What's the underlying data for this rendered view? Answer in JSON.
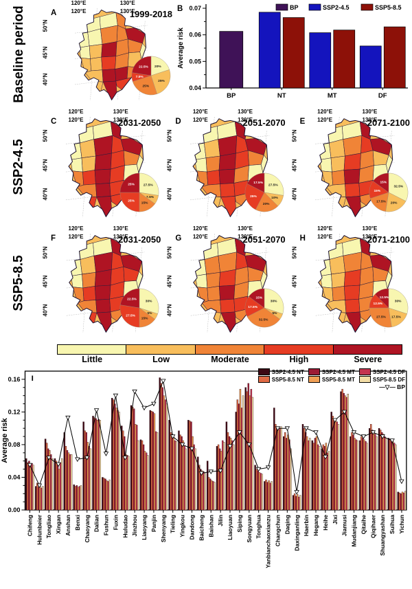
{
  "rows": [
    {
      "label": "Baseline period",
      "panels": [
        "A"
      ],
      "has_bar_chart": true
    },
    {
      "label": "SSP2-4.5",
      "panels": [
        "C",
        "D",
        "E"
      ]
    },
    {
      "label": "SSP5-8.5",
      "panels": [
        "F",
        "G",
        "H"
      ]
    }
  ],
  "risk_palette": {
    "labels": [
      "Little",
      "Low",
      "Moderate",
      "High",
      "Severe"
    ],
    "colors": [
      "#f8f6b0",
      "#f8be5c",
      "#f08437",
      "#e63c23",
      "#af1423"
    ]
  },
  "map_axis": {
    "top": [
      "120°E",
      "130°E"
    ],
    "bottom": [
      "120°E",
      "130°E"
    ],
    "left": [
      "50°N",
      "45°N",
      "40°N"
    ]
  },
  "map_panels": {
    "A": {
      "letter": "A",
      "period": "1999-2018",
      "region_levels": [
        0,
        0,
        2,
        0,
        0,
        2,
        2,
        4,
        0,
        1,
        4,
        2,
        2,
        0,
        1,
        1,
        3,
        2,
        1,
        1,
        4,
        4,
        2,
        1,
        4,
        3
      ]
    },
    "C": {
      "letter": "C",
      "period": "2031-2050",
      "region_levels": [
        0,
        0,
        4,
        0,
        1,
        4,
        3,
        4,
        0,
        1,
        4,
        3,
        2,
        0,
        2,
        3,
        4,
        3,
        0,
        2,
        4,
        3,
        0,
        3,
        4,
        3
      ]
    },
    "D": {
      "letter": "D",
      "period": "2051-2070",
      "region_levels": [
        0,
        0,
        4,
        0,
        1,
        4,
        3,
        4,
        0,
        2,
        4,
        3,
        2,
        0,
        2,
        3,
        4,
        2,
        0,
        2,
        3,
        3,
        0,
        1,
        3,
        2
      ]
    },
    "E": {
      "letter": "E",
      "period": "2071-2100",
      "region_levels": [
        0,
        0,
        4,
        0,
        1,
        2,
        3,
        4,
        0,
        1,
        3,
        2,
        1,
        0,
        1,
        2,
        4,
        2,
        0,
        1,
        3,
        3,
        0,
        1,
        4,
        2
      ]
    },
    "F": {
      "letter": "F",
      "period": "2031-2050",
      "region_levels": [
        0,
        0,
        4,
        0,
        1,
        4,
        3,
        4,
        0,
        2,
        4,
        3,
        3,
        0,
        2,
        3,
        4,
        3,
        0,
        2,
        4,
        3,
        0,
        3,
        4,
        2
      ]
    },
    "G": {
      "letter": "G",
      "period": "2051-2070",
      "region_levels": [
        0,
        0,
        4,
        0,
        2,
        2,
        3,
        4,
        0,
        2,
        3,
        2,
        2,
        0,
        2,
        2,
        4,
        2,
        0,
        2,
        3,
        3,
        0,
        1,
        4,
        2
      ]
    },
    "H": {
      "letter": "H",
      "period": "2071-2100",
      "region_levels": [
        0,
        0,
        4,
        0,
        1,
        2,
        2,
        4,
        0,
        1,
        3,
        2,
        2,
        0,
        1,
        2,
        3,
        2,
        0,
        1,
        3,
        2,
        0,
        1,
        4,
        2
      ]
    }
  },
  "chart_data": [
    {
      "id": "B",
      "type": "bar",
      "letter": "B",
      "ylabel": "Average risk",
      "ylim": [
        0.04,
        0.07
      ],
      "yticks": [
        0.04,
        0.05,
        0.06,
        0.07
      ],
      "categories": [
        "BP",
        "NT",
        "MT",
        "DF"
      ],
      "legend_position": "top-right-inside",
      "grid": false,
      "series": [
        {
          "name": "BP",
          "color": "#3f1257",
          "values": [
            0.0613,
            null,
            null,
            null
          ]
        },
        {
          "name": "SSP2-4.5",
          "color": "#1414bd",
          "values": [
            null,
            0.0685,
            0.0608,
            0.0558
          ]
        },
        {
          "name": "SSP5-8.5",
          "color": "#8d1108",
          "values": [
            null,
            0.0665,
            0.0618,
            0.063
          ]
        }
      ]
    },
    {
      "id": "pies",
      "type": "pie",
      "slice_labels": [
        "Little",
        "Low",
        "Moderate",
        "High",
        "Severe"
      ],
      "panels": [
        {
          "panel": "A",
          "values": [
            20,
            25,
            25,
            7.5,
            22.5
          ]
        },
        {
          "panel": "C",
          "values": [
            27.5,
            7.5,
            15,
            25,
            25
          ]
        },
        {
          "panel": "D",
          "values": [
            27.5,
            10,
            20,
            25,
            17.5
          ]
        },
        {
          "panel": "E",
          "values": [
            32.5,
            20,
            17.5,
            15,
            15
          ]
        },
        {
          "panel": "F",
          "values": [
            30,
            5,
            15,
            27.5,
            22.5
          ]
        },
        {
          "panel": "G",
          "values": [
            30,
            5,
            32.5,
            17.5,
            15
          ]
        },
        {
          "panel": "H",
          "values": [
            30,
            17.5,
            27.5,
            12.5,
            12.5
          ]
        }
      ]
    },
    {
      "id": "I",
      "type": "bar",
      "letter": "I",
      "ylabel": "Average risk",
      "ylim": [
        0,
        0.17
      ],
      "yticks": [
        0,
        0.04,
        0.08,
        0.12,
        0.16
      ],
      "legend_position": "top-right-inside",
      "grid": false,
      "categories": [
        "Chifeng",
        "Hulunbeier",
        "Tongliao",
        "Xingan",
        "Anshan",
        "Benxi",
        "Chaoyang",
        "Dalian",
        "Fushun",
        "Fuxin",
        "Huludao",
        "Jinzhou",
        "Liaoyang",
        "Panjin",
        "Shenyang",
        "Tieling",
        "Yingkou",
        "Dandong",
        "Baicheng",
        "Baishan",
        "Jilin",
        "Liaoyuan",
        "Siping",
        "Songyuan",
        "Tonghua",
        "Yanbianchaoxianzu",
        "Changchun",
        "Daqing",
        "Daxinganling",
        "Haerbin",
        "Hegang",
        "Heihe",
        "Jixi",
        "Jiamusi",
        "Mudanjiang",
        "Qitaihe",
        "Qiqihaer",
        "Shuangyashan",
        "Suihua",
        "Yichun"
      ],
      "series": [
        {
          "name": "SSP2-4.5 NT",
          "color": "#3d0814",
          "values": [
            0.063,
            0.029,
            0.087,
            0.063,
            0.095,
            0.031,
            0.108,
            0.115,
            0.04,
            0.137,
            0.103,
            0.128,
            0.086,
            0.122,
            0.162,
            0.11,
            0.097,
            0.11,
            0.065,
            0.06,
            0.078,
            0.108,
            0.12,
            0.15,
            0.055,
            0.035,
            0.125,
            0.09,
            0.018,
            0.105,
            0.085,
            0.075,
            0.12,
            0.145,
            0.09,
            0.085,
            0.1,
            0.1,
            0.088,
            0.022
          ]
        },
        {
          "name": "SSP5-8.5 NT",
          "color": "#e06a45",
          "values": [
            0.058,
            0.033,
            0.082,
            0.06,
            0.078,
            0.029,
            0.097,
            0.113,
            0.039,
            0.135,
            0.097,
            0.126,
            0.085,
            0.121,
            0.155,
            0.095,
            0.092,
            0.109,
            0.055,
            0.04,
            0.08,
            0.095,
            0.135,
            0.145,
            0.05,
            0.037,
            0.105,
            0.095,
            0.02,
            0.1,
            0.082,
            0.08,
            0.115,
            0.148,
            0.095,
            0.09,
            0.105,
            0.098,
            0.086,
            0.021
          ]
        },
        {
          "name": "SSP2-4.5 MT",
          "color": "#9c1b35",
          "values": [
            0.06,
            0.028,
            0.075,
            0.055,
            0.073,
            0.03,
            0.095,
            0.112,
            0.038,
            0.13,
            0.09,
            0.124,
            0.08,
            0.12,
            0.15,
            0.093,
            0.09,
            0.108,
            0.05,
            0.038,
            0.075,
            0.09,
            0.13,
            0.155,
            0.048,
            0.034,
            0.1,
            0.088,
            0.017,
            0.095,
            0.088,
            0.078,
            0.112,
            0.143,
            0.092,
            0.088,
            0.098,
            0.095,
            0.085,
            0.02
          ]
        },
        {
          "name": "SSP5-8.5 MT",
          "color": "#f09f55",
          "values": [
            0.056,
            0.031,
            0.073,
            0.05,
            0.07,
            0.028,
            0.083,
            0.11,
            0.036,
            0.125,
            0.068,
            0.105,
            0.072,
            0.118,
            0.14,
            0.088,
            0.085,
            0.09,
            0.048,
            0.036,
            0.072,
            0.088,
            0.148,
            0.14,
            0.046,
            0.036,
            0.098,
            0.092,
            0.019,
            0.09,
            0.09,
            0.082,
            0.11,
            0.14,
            0.088,
            0.086,
            0.095,
            0.093,
            0.084,
            0.022
          ]
        },
        {
          "name": "SSP2-4.5 DF",
          "color": "#c43450",
          "values": [
            0.057,
            0.027,
            0.068,
            0.058,
            0.068,
            0.029,
            0.078,
            0.111,
            0.035,
            0.122,
            0.067,
            0.104,
            0.07,
            0.096,
            0.135,
            0.085,
            0.078,
            0.08,
            0.047,
            0.035,
            0.085,
            0.085,
            0.125,
            0.148,
            0.045,
            0.033,
            0.1,
            0.086,
            0.016,
            0.085,
            0.08,
            0.07,
            0.108,
            0.138,
            0.086,
            0.084,
            0.093,
            0.09,
            0.082,
            0.021
          ]
        },
        {
          "name": "SSP5-8.5 DF",
          "color": "#f3dda6",
          "values": [
            0.055,
            0.029,
            0.063,
            0.063,
            0.068,
            0.03,
            0.075,
            0.11,
            0.037,
            0.12,
            0.066,
            0.085,
            0.067,
            0.095,
            0.13,
            0.084,
            0.075,
            0.075,
            0.045,
            0.034,
            0.083,
            0.08,
            0.14,
            0.138,
            0.044,
            0.035,
            0.102,
            0.075,
            0.018,
            0.088,
            0.078,
            0.072,
            0.105,
            0.142,
            0.085,
            0.082,
            0.09,
            0.088,
            0.08,
            0.023
          ]
        }
      ],
      "line": {
        "name": "BP",
        "color": "#000000",
        "marker": "open-triangle-down",
        "values": [
          0.055,
          0.03,
          0.064,
          0.056,
          0.113,
          0.062,
          0.064,
          0.122,
          0.069,
          0.14,
          0.064,
          0.145,
          0.125,
          0.13,
          0.158,
          0.09,
          0.08,
          0.075,
          0.045,
          0.047,
          0.048,
          0.078,
          0.095,
          0.08,
          0.05,
          0.052,
          0.1,
          0.1,
          0.022,
          0.1,
          0.095,
          0.065,
          0.11,
          0.12,
          0.095,
          0.09,
          0.095,
          0.09,
          0.085,
          0.035
        ]
      }
    }
  ]
}
